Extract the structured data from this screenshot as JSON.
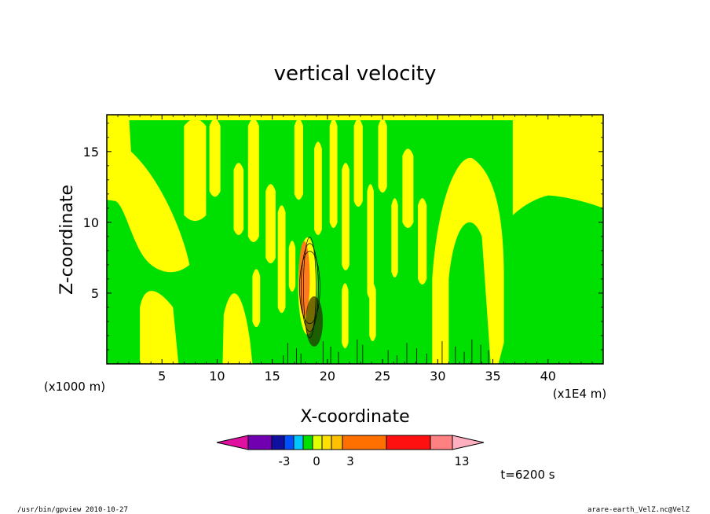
{
  "chart_data": {
    "type": "heatmap",
    "title": "vertical velocity",
    "xlabel": "X-coordinate",
    "ylabel": "Z-coordinate",
    "x_unit": "(x1E4 m)",
    "y_unit": "(x1000 m)",
    "xlim": [
      0,
      45
    ],
    "ylim": [
      0,
      17.6
    ],
    "x_ticks": [
      "5",
      "10",
      "15",
      "20",
      "25",
      "30",
      "35",
      "40"
    ],
    "y_ticks": [
      "5",
      "10",
      "15"
    ],
    "time_label": "t=6200 s",
    "colorbar": {
      "colors": [
        "#e010a0",
        "#7000b0",
        "#1010a0",
        "#0050ff",
        "#00c8ff",
        "#00e000",
        "#e0ff00",
        "#ffe000",
        "#ffc000",
        "#ff7000",
        "#ff1010",
        "#ff8080",
        "#ffb0c0"
      ],
      "tick_labels": [
        "-3",
        "0",
        "3",
        "13"
      ]
    },
    "fields": {
      "background_color": "#00e000",
      "positive_color": "#ffff00",
      "strong_positive_color": "#ff7a1a",
      "contour_color": "#000000"
    }
  },
  "footer": {
    "left": "/usr/bin/gpview  2010-10-27",
    "right": "arare-earth_VelZ.nc@VelZ"
  }
}
